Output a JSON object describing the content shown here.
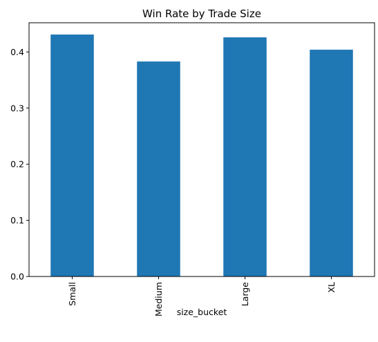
{
  "chart_data": {
    "type": "bar",
    "title": "Win Rate by Trade Size",
    "xlabel": "size_bucket",
    "ylabel": "",
    "categories": [
      "Small",
      "Medium",
      "Large",
      "XL"
    ],
    "values": [
      0.431,
      0.383,
      0.426,
      0.404
    ],
    "ylim": [
      0,
      0.452
    ],
    "yticks": [
      0.0,
      0.1,
      0.2,
      0.3,
      0.4
    ],
    "ytick_labels": [
      "0.0",
      "0.1",
      "0.2",
      "0.3",
      "0.4"
    ],
    "bar_color": "#1f77b4",
    "grid": false,
    "legend": "none"
  }
}
